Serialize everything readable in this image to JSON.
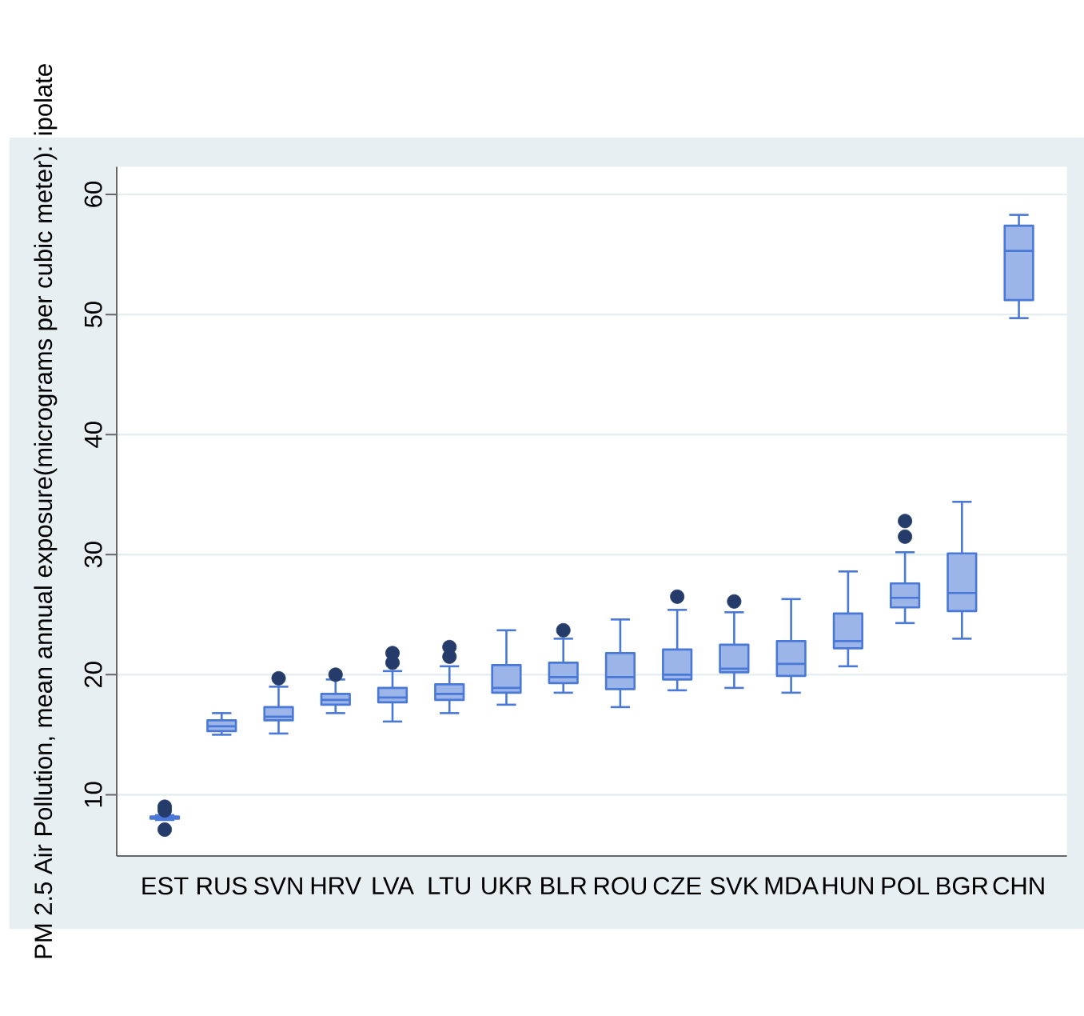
{
  "chart_data": {
    "type": "box",
    "ylabel": "PM 2.5 Air Pollution, mean annual exposure(micrograms per cubic meter): ipolate",
    "categories": [
      "EST",
      "RUS",
      "SVN",
      "HRV",
      "LVA",
      "LTU",
      "UKR",
      "BLR",
      "ROU",
      "CZE",
      "SVK",
      "MDA",
      "HUN",
      "POL",
      "BGR",
      "CHN"
    ],
    "boxes": [
      {
        "low": 7.9,
        "q1": 8.0,
        "median": 8.1,
        "q3": 8.2,
        "high": 8.3,
        "outliers": [
          9.0,
          8.7,
          7.1
        ]
      },
      {
        "low": 15.0,
        "q1": 15.3,
        "median": 15.7,
        "q3": 16.2,
        "high": 16.8
      },
      {
        "low": 15.1,
        "q1": 16.2,
        "median": 16.5,
        "q3": 17.3,
        "high": 19.0,
        "outliers": [
          19.7
        ]
      },
      {
        "low": 16.8,
        "q1": 17.5,
        "median": 17.9,
        "q3": 18.4,
        "high": 19.6,
        "outliers": [
          20.0
        ]
      },
      {
        "low": 16.1,
        "q1": 17.7,
        "median": 18.1,
        "q3": 18.9,
        "high": 20.3,
        "outliers": [
          21.0,
          21.8
        ]
      },
      {
        "low": 16.8,
        "q1": 17.9,
        "median": 18.4,
        "q3": 19.2,
        "high": 20.7,
        "outliers": [
          21.5,
          22.3
        ]
      },
      {
        "low": 17.5,
        "q1": 18.5,
        "median": 18.9,
        "q3": 20.8,
        "high": 23.7
      },
      {
        "low": 18.5,
        "q1": 19.3,
        "median": 19.8,
        "q3": 21.0,
        "high": 23.0,
        "outliers": [
          23.7
        ]
      },
      {
        "low": 17.3,
        "q1": 18.8,
        "median": 19.8,
        "q3": 21.8,
        "high": 24.6
      },
      {
        "low": 18.7,
        "q1": 19.6,
        "median": 20.0,
        "q3": 22.1,
        "high": 25.4,
        "outliers": [
          26.5
        ]
      },
      {
        "low": 18.9,
        "q1": 20.2,
        "median": 20.5,
        "q3": 22.5,
        "high": 25.2,
        "outliers": [
          26.1
        ]
      },
      {
        "low": 18.5,
        "q1": 19.9,
        "median": 20.9,
        "q3": 22.8,
        "high": 26.3
      },
      {
        "low": 20.7,
        "q1": 22.2,
        "median": 22.8,
        "q3": 25.1,
        "high": 28.6
      },
      {
        "low": 24.3,
        "q1": 25.6,
        "median": 26.4,
        "q3": 27.6,
        "high": 30.2,
        "outliers": [
          31.5,
          32.8
        ]
      },
      {
        "low": 23.0,
        "q1": 25.3,
        "median": 26.8,
        "q3": 30.1,
        "high": 34.4
      },
      {
        "low": 49.7,
        "q1": 51.2,
        "median": 55.3,
        "q3": 57.4,
        "high": 58.3
      }
    ],
    "color": "#4a78d6",
    "marker": "circle",
    "grid": "y",
    "ylim": [
      4.9,
      62.3
    ],
    "yticks": [
      10,
      20,
      30,
      40,
      50,
      60
    ]
  }
}
